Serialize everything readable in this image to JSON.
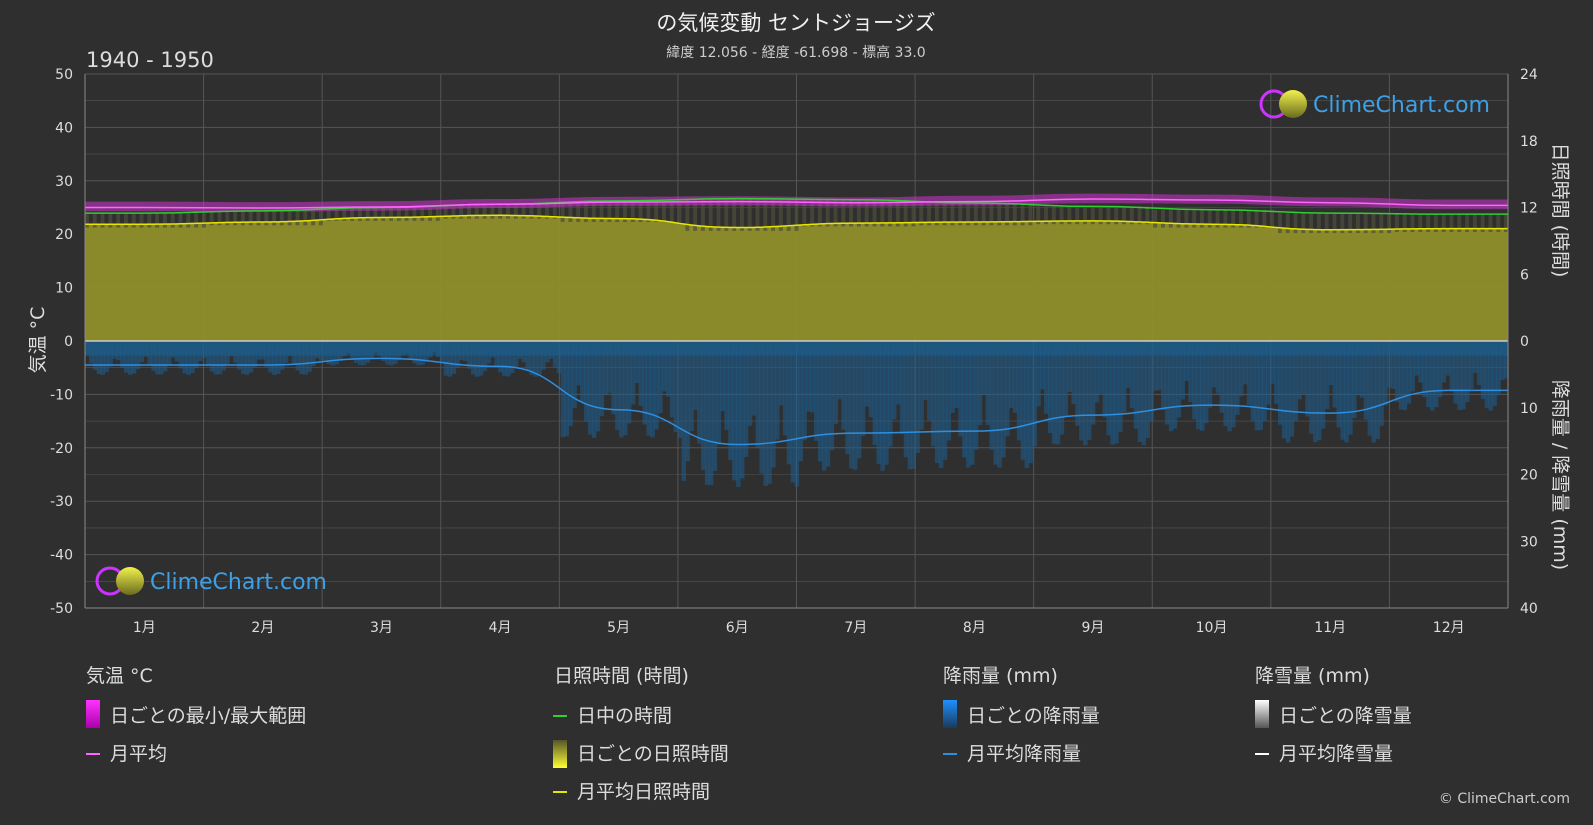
{
  "chart_data": {
    "type": "area",
    "title": "の気候変動 セントジョージズ",
    "subtitle": "緯度 12.056 - 経度 -61.698 - 標高 33.0",
    "period": "1940 - 1950",
    "categories": [
      "1月",
      "2月",
      "3月",
      "4月",
      "5月",
      "6月",
      "7月",
      "8月",
      "9月",
      "10月",
      "11月",
      "12月"
    ],
    "axes": {
      "left": {
        "label": "気温 °C",
        "min": -50,
        "max": 50,
        "ticks": [
          50,
          40,
          30,
          20,
          10,
          0,
          -10,
          -20,
          -30,
          -40,
          -50
        ]
      },
      "right_top": {
        "label": "日照時間 (時間)",
        "min": 0,
        "max": 24,
        "ticks": [
          24,
          18,
          12,
          6,
          0
        ]
      },
      "right_bottom": {
        "label": "降雨量 / 降雪量 (mm)",
        "min": 0,
        "max": 40,
        "ticks": [
          0,
          10,
          20,
          30,
          40
        ]
      }
    },
    "series": [
      {
        "name": "日中の時間",
        "unit": "時間",
        "values": [
          11.5,
          11.7,
          12.0,
          12.3,
          12.6,
          12.8,
          12.7,
          12.4,
          12.1,
          11.8,
          11.5,
          11.4
        ]
      },
      {
        "name": "月平均日照時間",
        "unit": "時間",
        "values": [
          10.5,
          10.7,
          11.1,
          11.3,
          11.0,
          10.2,
          10.6,
          10.7,
          10.8,
          10.5,
          10.0,
          10.1
        ]
      },
      {
        "name": "月平均",
        "unit": "°C",
        "values": [
          25.0,
          24.9,
          25.1,
          25.6,
          26.0,
          26.1,
          25.9,
          26.1,
          26.6,
          26.4,
          25.9,
          25.4
        ]
      },
      {
        "name": "月平均降雨量",
        "unit": "mm",
        "values": [
          3.6,
          3.6,
          2.6,
          3.8,
          10.3,
          15.5,
          13.8,
          13.5,
          11.1,
          9.6,
          10.8,
          7.4
        ]
      },
      {
        "name": "月平均降雪量",
        "unit": "mm",
        "values": [
          0,
          0,
          0,
          0,
          0,
          0,
          0,
          0,
          0,
          0,
          0,
          0
        ]
      }
    ],
    "temp_range": {
      "min": [
        24.3,
        24.2,
        24.4,
        24.9,
        25.3,
        25.4,
        25.2,
        25.4,
        25.8,
        25.7,
        25.2,
        24.7
      ],
      "max": [
        26.1,
        26.0,
        26.2,
        26.6,
        27.0,
        27.1,
        26.9,
        27.2,
        27.6,
        27.4,
        26.9,
        26.5
      ]
    },
    "colors": {
      "background": "#2f2f2f",
      "grid": "#555555",
      "daylight": "#33cc33",
      "sunshine_line": "#e6e600",
      "sunshine_fill": "#8f8f2a",
      "temp_line": "#ff66ff",
      "temp_range": "#cc33cc",
      "rain_line": "#2e8fe0",
      "rain_fill": "#1d5f8f",
      "snow": "#ffffff"
    },
    "watermark": "ClimeChart.com"
  },
  "legend": {
    "temp": {
      "title": "気温 °C",
      "items": [
        "日ごとの最小/最大範囲",
        "月平均"
      ]
    },
    "sun": {
      "title": "日照時間 (時間)",
      "items": [
        "日中の時間",
        "日ごとの日照時間",
        "月平均日照時間"
      ]
    },
    "rain": {
      "title": "降雨量 (mm)",
      "items": [
        "日ごとの降雨量",
        "月平均降雨量"
      ]
    },
    "snow": {
      "title": "降雪量 (mm)",
      "items": [
        "日ごとの降雪量",
        "月平均降雪量"
      ]
    }
  },
  "copyright": "© ClimeChart.com"
}
